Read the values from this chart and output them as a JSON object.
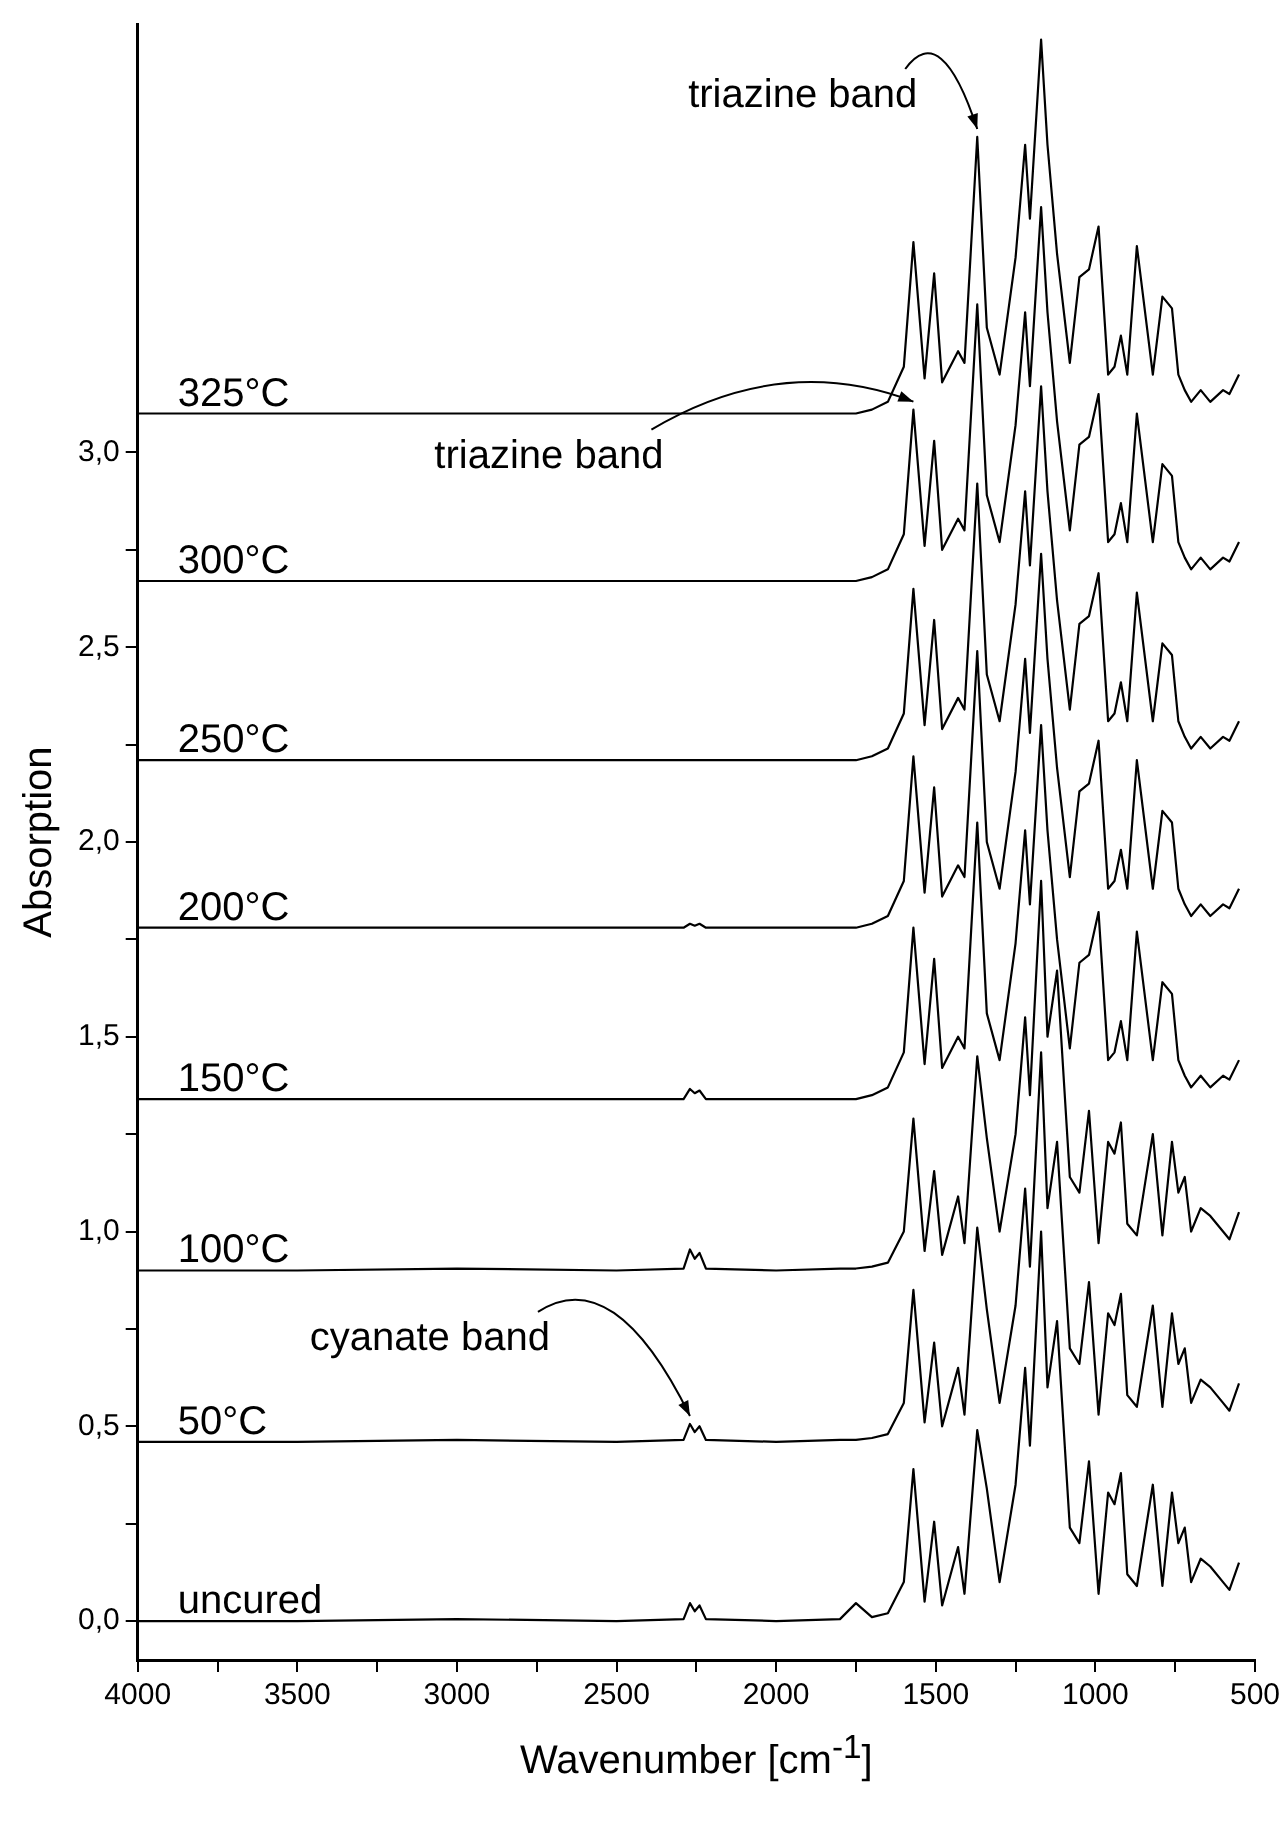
{
  "chart_data": {
    "type": "line",
    "xlabel": "Wavenumber [cm$^{-1}$]",
    "ylabel": "Absorption",
    "legend": false,
    "grid": false,
    "marker": "none",
    "line_style": "solid",
    "xlim": [
      4000,
      500
    ],
    "ylim": [
      -0.1,
      4.1
    ],
    "xticks": [
      4000,
      {
        "value": 3750,
        "label": null
      },
      3500,
      {
        "value": 3250,
        "label": null
      },
      3000,
      {
        "value": 2750,
        "label": null
      },
      2500,
      {
        "value": 2250,
        "label": null
      },
      2000,
      {
        "value": 1750,
        "label": null
      },
      1500,
      {
        "value": 1250,
        "label": null
      },
      1000,
      {
        "value": 750,
        "label": null
      },
      500
    ],
    "yticks": [
      {
        "value": 0,
        "label": "0,0"
      },
      {
        "value": 0.25,
        "label": null
      },
      {
        "value": 0.5,
        "label": "0,5"
      },
      {
        "value": 0.75,
        "label": null
      },
      {
        "value": 1,
        "label": "1,0"
      },
      {
        "value": 1.25,
        "label": null
      },
      {
        "value": 1.5,
        "label": "1,5"
      },
      {
        "value": 1.75,
        "label": null
      },
      {
        "value": 2,
        "label": "2,0"
      },
      {
        "value": 2.25,
        "label": null
      },
      {
        "value": 2.5,
        "label": "2,5"
      },
      {
        "value": 2.75,
        "label": null
      },
      {
        "value": 3,
        "label": "3,0"
      }
    ],
    "x": [
      4000,
      3500,
      3000,
      2500,
      2290,
      2270,
      2255,
      2240,
      2220,
      2000,
      1800,
      1750,
      1700,
      1650,
      1600,
      1570,
      1535,
      1505,
      1480,
      1430,
      1410,
      1370,
      1340,
      1300,
      1250,
      1220,
      1205,
      1170,
      1150,
      1120,
      1080,
      1050,
      1020,
      990,
      960,
      940,
      920,
      900,
      870,
      820,
      790,
      760,
      740,
      720,
      700,
      670,
      640,
      600,
      580,
      550
    ],
    "series": [
      {
        "name": "uncured",
        "color": "#000000",
        "values": [
          0,
          0,
          0.005,
          0,
          0.005,
          0.046,
          0.025,
          0.04,
          0.005,
          0,
          0.005,
          0.046,
          0.01,
          0.02,
          0.1,
          0.39,
          0.05,
          0.255,
          0.04,
          0.19,
          0.07,
          0.49,
          0.34,
          0.1,
          0.35,
          0.65,
          0.45,
          1.0,
          0.6,
          0.77,
          0.24,
          0.2,
          0.41,
          0.07,
          0.33,
          0.3,
          0.38,
          0.12,
          0.09,
          0.35,
          0.09,
          0.33,
          0.2,
          0.24,
          0.1,
          0.16,
          0.14,
          0.1,
          0.08,
          0.15
        ]
      },
      {
        "name": "50°C",
        "color": "#000000",
        "values": [
          0.46,
          0.46,
          0.465,
          0.46,
          0.465,
          0.506,
          0.485,
          0.5,
          0.465,
          0.46,
          0.465,
          0.465,
          0.47,
          0.48,
          0.56,
          0.85,
          0.51,
          0.715,
          0.5,
          0.65,
          0.53,
          1.01,
          0.8,
          0.56,
          0.81,
          1.11,
          0.91,
          1.46,
          1.06,
          1.23,
          0.7,
          0.66,
          0.87,
          0.53,
          0.79,
          0.76,
          0.84,
          0.58,
          0.55,
          0.81,
          0.55,
          0.79,
          0.66,
          0.7,
          0.56,
          0.62,
          0.6,
          0.56,
          0.54,
          0.61
        ]
      },
      {
        "name": "100°C",
        "color": "#000000",
        "values": [
          0.9,
          0.9,
          0.905,
          0.9,
          0.905,
          0.954,
          0.93,
          0.945,
          0.905,
          0.9,
          0.905,
          0.905,
          0.91,
          0.92,
          1.0,
          1.29,
          0.95,
          1.155,
          0.94,
          1.09,
          0.97,
          1.45,
          1.24,
          1.0,
          1.25,
          1.55,
          1.35,
          1.9,
          1.5,
          1.67,
          1.14,
          1.1,
          1.31,
          0.97,
          1.23,
          1.2,
          1.28,
          1.02,
          0.99,
          1.25,
          0.99,
          1.23,
          1.1,
          1.14,
          1.0,
          1.06,
          1.04,
          1.0,
          0.98,
          1.05
        ]
      },
      {
        "name": "150°C",
        "color": "#000000",
        "values": [
          1.34,
          1.34,
          1.34,
          1.34,
          1.34,
          1.366,
          1.355,
          1.362,
          1.34,
          1.34,
          1.34,
          1.34,
          1.35,
          1.37,
          1.46,
          1.78,
          1.43,
          1.7,
          1.42,
          1.5,
          1.47,
          2.05,
          1.56,
          1.44,
          1.74,
          2.03,
          1.84,
          2.3,
          2.03,
          1.75,
          1.47,
          1.69,
          1.71,
          1.82,
          1.44,
          1.46,
          1.54,
          1.44,
          1.77,
          1.44,
          1.64,
          1.61,
          1.44,
          1.4,
          1.37,
          1.4,
          1.37,
          1.4,
          1.39,
          1.44
        ]
      },
      {
        "name": "200°C",
        "color": "#000000",
        "values": [
          1.78,
          1.78,
          1.78,
          1.78,
          1.78,
          1.79,
          1.785,
          1.79,
          1.78,
          1.78,
          1.78,
          1.78,
          1.79,
          1.81,
          1.9,
          2.22,
          1.87,
          2.14,
          1.86,
          1.94,
          1.91,
          2.49,
          2.0,
          1.88,
          2.18,
          2.47,
          2.28,
          2.74,
          2.47,
          2.19,
          1.91,
          2.13,
          2.15,
          2.26,
          1.88,
          1.9,
          1.98,
          1.88,
          2.21,
          1.88,
          2.08,
          2.05,
          1.88,
          1.84,
          1.81,
          1.84,
          1.81,
          1.84,
          1.83,
          1.88
        ]
      },
      {
        "name": "250°C",
        "color": "#000000",
        "values": [
          2.21,
          2.21,
          2.21,
          2.21,
          2.21,
          2.21,
          2.21,
          2.21,
          2.21,
          2.21,
          2.21,
          2.21,
          2.22,
          2.24,
          2.33,
          2.65,
          2.3,
          2.57,
          2.29,
          2.37,
          2.34,
          2.92,
          2.43,
          2.31,
          2.61,
          2.9,
          2.71,
          3.17,
          2.9,
          2.62,
          2.34,
          2.56,
          2.58,
          2.69,
          2.31,
          2.33,
          2.41,
          2.31,
          2.64,
          2.31,
          2.51,
          2.48,
          2.31,
          2.27,
          2.24,
          2.27,
          2.24,
          2.27,
          2.26,
          2.31
        ]
      },
      {
        "name": "300°C",
        "color": "#000000",
        "values": [
          2.67,
          2.67,
          2.67,
          2.67,
          2.67,
          2.67,
          2.67,
          2.67,
          2.67,
          2.67,
          2.67,
          2.67,
          2.68,
          2.7,
          2.79,
          3.11,
          2.76,
          3.03,
          2.75,
          2.83,
          2.8,
          3.38,
          2.89,
          2.77,
          3.07,
          3.36,
          3.17,
          3.63,
          3.36,
          3.08,
          2.8,
          3.02,
          3.04,
          3.15,
          2.77,
          2.79,
          2.87,
          2.77,
          3.1,
          2.77,
          2.97,
          2.94,
          2.77,
          2.73,
          2.7,
          2.73,
          2.7,
          2.73,
          2.72,
          2.77
        ]
      },
      {
        "name": "325°C",
        "color": "#000000",
        "values": [
          3.1,
          3.1,
          3.1,
          3.1,
          3.1,
          3.1,
          3.1,
          3.1,
          3.1,
          3.1,
          3.1,
          3.1,
          3.11,
          3.13,
          3.22,
          3.54,
          3.19,
          3.46,
          3.18,
          3.26,
          3.23,
          3.81,
          3.32,
          3.2,
          3.5,
          3.79,
          3.6,
          4.06,
          3.79,
          3.51,
          3.23,
          3.45,
          3.47,
          3.58,
          3.2,
          3.22,
          3.3,
          3.2,
          3.53,
          3.2,
          3.4,
          3.37,
          3.2,
          3.16,
          3.13,
          3.16,
          3.13,
          3.16,
          3.15,
          3.2
        ]
      }
    ],
    "annotations": [
      {
        "text": "triazine band",
        "x": 1370,
        "y": 3.81
      },
      {
        "text": "triazine band",
        "x": 1570,
        "y": 3.11
      },
      {
        "text": "cyanate band",
        "x": 2270,
        "y": 0.506
      }
    ]
  }
}
